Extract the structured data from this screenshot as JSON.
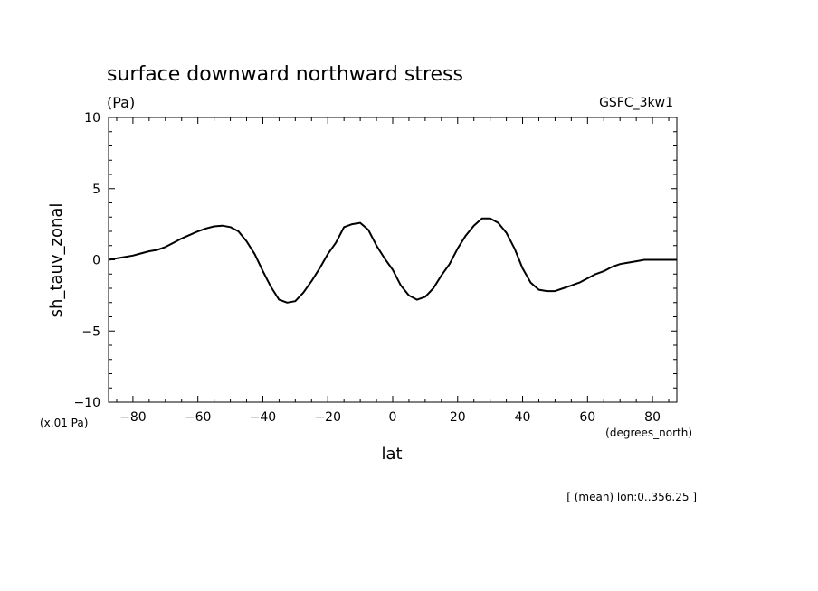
{
  "chart_data": {
    "type": "line",
    "title": "surface downward northward stress",
    "units": "(Pa)",
    "dataset": "GSFC_3kw1",
    "xlabel": "lat",
    "xunits": "(degrees_north)",
    "ylabel": "sh_tauv_zonal",
    "yunits": "(x.01 Pa)",
    "footnote": "[ (mean) lon:0..356.25 ]",
    "xlim": [
      -87.5,
      87.5
    ],
    "ylim": [
      -10,
      10
    ],
    "xticks": [
      -80,
      -60,
      -40,
      -20,
      0,
      20,
      40,
      60,
      80
    ],
    "yticks": [
      -10,
      -5,
      0,
      5,
      10
    ],
    "xtick_labels": [
      "−80",
      "−60",
      "−40",
      "−20",
      "0",
      "20",
      "40",
      "60",
      "80"
    ],
    "ytick_labels": [
      "−10",
      "−5",
      "0",
      "5",
      "10"
    ],
    "grid": false,
    "series": [
      {
        "x": [
          -87.5,
          -85,
          -82.5,
          -80,
          -77.5,
          -75,
          -72.5,
          -70,
          -67.5,
          -65,
          -62.5,
          -60,
          -57.5,
          -55,
          -52.5,
          -50,
          -47.5,
          -45,
          -42.5,
          -40,
          -37.5,
          -35,
          -32.5,
          -30,
          -27.5,
          -25,
          -22.5,
          -20,
          -17.5,
          -15,
          -12.5,
          -10,
          -7.5,
          -5,
          -2.5,
          0,
          2.5,
          5,
          7.5,
          10,
          12.5,
          15,
          17.5,
          20,
          22.5,
          25,
          27.5,
          30,
          32.5,
          35,
          37.5,
          40,
          42.5,
          45,
          47.5,
          50,
          52.5,
          55,
          57.5,
          60,
          62.5,
          65,
          67.5,
          70,
          72.5,
          75,
          77.5,
          80,
          82.5,
          85,
          87.5
        ],
        "y": [
          0,
          0.1,
          0.2,
          0.3,
          0.45,
          0.6,
          0.7,
          0.9,
          1.2,
          1.5,
          1.75,
          2.0,
          2.2,
          2.35,
          2.4,
          2.3,
          2.0,
          1.3,
          0.4,
          -0.8,
          -1.9,
          -2.8,
          -3.0,
          -2.9,
          -2.3,
          -1.5,
          -0.6,
          0.4,
          1.2,
          2.3,
          2.5,
          2.6,
          2.1,
          1.0,
          0.1,
          -0.7,
          -1.8,
          -2.5,
          -2.8,
          -2.6,
          -2.0,
          -1.1,
          -0.3,
          0.8,
          1.7,
          2.4,
          2.9,
          2.9,
          2.6,
          1.9,
          0.8,
          -0.6,
          -1.6,
          -2.1,
          -2.2,
          -2.2,
          -2.0,
          -1.8,
          -1.6,
          -1.3,
          -1.0,
          -0.8,
          -0.5,
          -0.3,
          -0.2,
          -0.1,
          0,
          0,
          0,
          0,
          0
        ]
      }
    ]
  }
}
